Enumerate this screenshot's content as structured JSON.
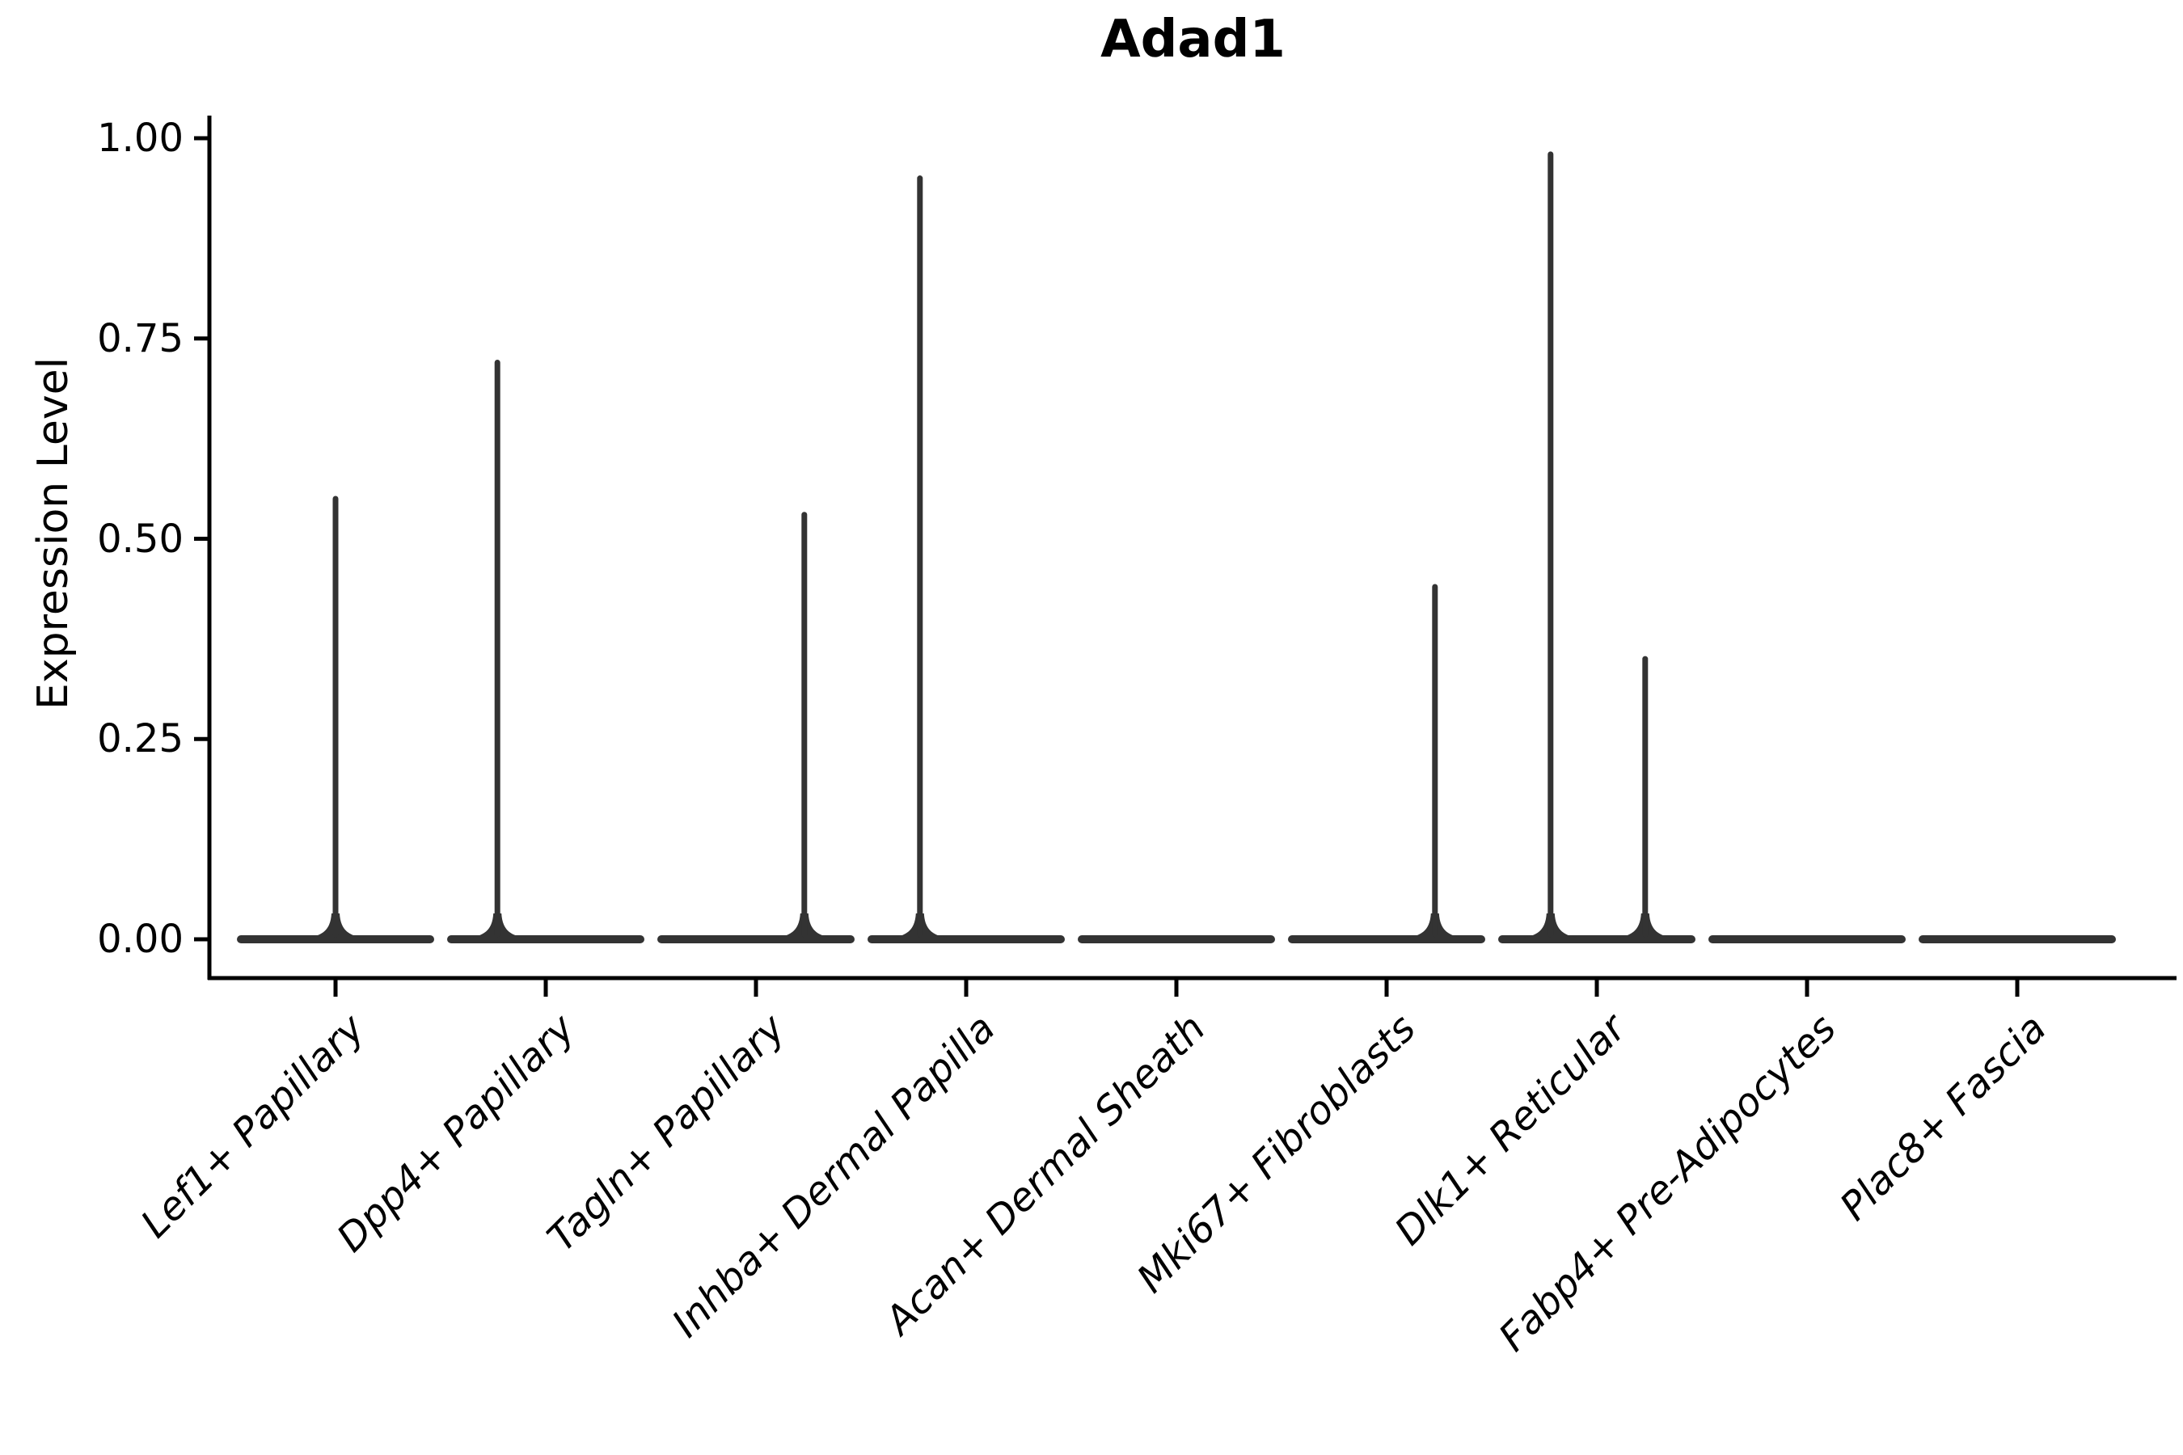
{
  "page": {
    "background": "#ffffff"
  },
  "chart_data": {
    "type": "violin",
    "title": "Adad1",
    "ylabel": "Expression Level",
    "xlabel": "",
    "ylim": [
      0.0,
      1.0
    ],
    "yticks": [
      {
        "value": 0.0,
        "label": "0.00"
      },
      {
        "value": 0.25,
        "label": "0.25"
      },
      {
        "value": 0.5,
        "label": "0.50"
      },
      {
        "value": 0.75,
        "label": "0.75"
      },
      {
        "value": 1.0,
        "label": "1.00"
      }
    ],
    "grid": false,
    "legend": "none",
    "x_label_rotation_deg": 45,
    "x_label_italic": true,
    "categories": [
      "Lef1+ Papillary",
      "Dpp4+ Papillary",
      "Tagln+ Papillary",
      "Inhba+ Dermal Papilla",
      "Acan+ Dermal Sheath",
      "Mki67+ Fibroblasts",
      "Dlk1+ Reticular",
      "Fabp4+ Pre-Adipocytes",
      "Plac8+ Fascia"
    ],
    "violins": [
      {
        "category": "Lef1+ Papillary",
        "base_value": 0.0,
        "spikes": [
          {
            "x_offset_frac": 0.0,
            "max_expression": 0.55
          }
        ]
      },
      {
        "category": "Dpp4+ Papillary",
        "base_value": 0.0,
        "spikes": [
          {
            "x_offset_frac": -0.23,
            "max_expression": 0.72
          }
        ]
      },
      {
        "category": "Tagln+ Papillary",
        "base_value": 0.0,
        "spikes": [
          {
            "x_offset_frac": 0.23,
            "max_expression": 0.53
          }
        ]
      },
      {
        "category": "Inhba+ Dermal Papilla",
        "base_value": 0.0,
        "spikes": [
          {
            "x_offset_frac": -0.22,
            "max_expression": 0.95
          }
        ]
      },
      {
        "category": "Acan+ Dermal Sheath",
        "base_value": 0.0,
        "spikes": []
      },
      {
        "category": "Mki67+ Fibroblasts",
        "base_value": 0.0,
        "spikes": [
          {
            "x_offset_frac": 0.23,
            "max_expression": 0.44
          }
        ]
      },
      {
        "category": "Dlk1+ Reticular",
        "base_value": 0.0,
        "spikes": [
          {
            "x_offset_frac": -0.22,
            "max_expression": 0.98
          },
          {
            "x_offset_frac": 0.23,
            "max_expression": 0.35
          }
        ]
      },
      {
        "category": "Fabp4+ Pre-Adipocytes",
        "base_value": 0.0,
        "spikes": []
      },
      {
        "category": "Plac8+ Fascia",
        "base_value": 0.0,
        "spikes": []
      }
    ],
    "colors": {
      "violin": "#333333",
      "axis": "#000000",
      "text": "#000000",
      "title": "#000000",
      "background": "#ffffff"
    }
  }
}
